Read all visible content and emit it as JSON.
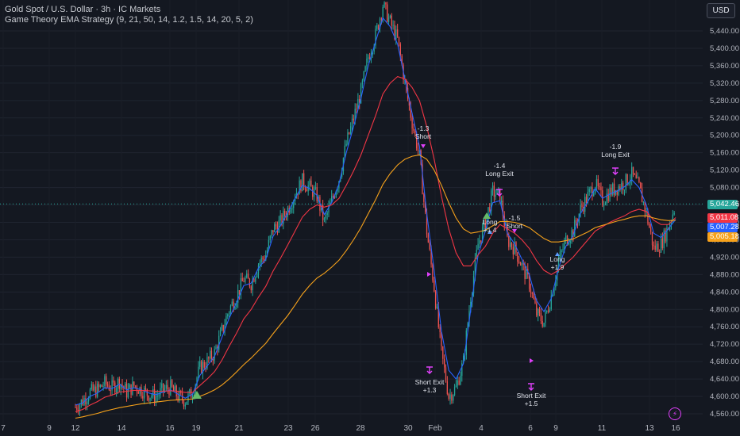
{
  "header": {
    "title": "Gold Spot / U.S. Dollar · 3h · IC Markets",
    "indicator": "Game Theory EMA Strategy (9, 21, 50, 14, 1.2, 1.5, 14, 20, 5, 2)"
  },
  "currency_button": "USD",
  "colors": {
    "background": "#141821",
    "up": "#26a69a",
    "down": "#ef5350",
    "ema_fast": "#2962ff",
    "ema_mid": "#f23645",
    "ema_slow": "#f7a21b",
    "signal": "#e040fb",
    "long_marker": "#66bb6a"
  },
  "price_tags": [
    {
      "value": "5,042.46",
      "color": "#26a69a"
    },
    {
      "value": "5,011.08",
      "color": "#f23645"
    },
    {
      "value": "5,007.28",
      "color": "#2962ff"
    },
    {
      "value": "5,005.18",
      "color": "#f7a21b"
    }
  ],
  "chart_data": {
    "type": "candlestick",
    "ylim": [
      4540,
      5500
    ],
    "y_ticks": [
      4560,
      4600,
      4640,
      4680,
      4720,
      4760,
      4800,
      4840,
      4880,
      4920,
      4960,
      5000,
      5040,
      5080,
      5120,
      5160,
      5200,
      5240,
      5280,
      5320,
      5360,
      5400,
      5440
    ],
    "y_tick_labels": [
      "4,560.00",
      "4,600.00",
      "4,640.00",
      "4,680.00",
      "4,720.00",
      "4,760.00",
      "4,800.00",
      "4,840.00",
      "4,880.00",
      "4,920.00",
      "4,960.00",
      "5,000.00",
      "5,040.00",
      "5,080.00",
      "5,120.00",
      "5,160.00",
      "5,200.00",
      "5,240.00",
      "5,280.00",
      "5,320.00",
      "5,360.00",
      "5,400.00",
      "5,440.00"
    ],
    "x_labels": [
      "7",
      "9",
      "12",
      "14",
      "16",
      "19",
      "21",
      "23",
      "26",
      "28",
      "30",
      "Feb",
      "4",
      "6",
      "9",
      "11",
      "13",
      "16"
    ],
    "current_price": 5042.46,
    "close_path": [
      4575,
      4590,
      4610,
      4615,
      4630,
      4620,
      4635,
      4610,
      4625,
      4615,
      4605,
      4600,
      4615,
      4620,
      4600,
      4590,
      4610,
      4665,
      4680,
      4700,
      4750,
      4800,
      4830,
      4870,
      4860,
      4905,
      4925,
      4985,
      5000,
      5030,
      5065,
      5095,
      5080,
      5060,
      5000,
      5050,
      5100,
      5180,
      5240,
      5300,
      5380,
      5430,
      5500,
      5460,
      5420,
      5320,
      5230,
      5150,
      4980,
      4850,
      4700,
      4600,
      4620,
      4680,
      4830,
      4950,
      5000,
      5070,
      5060,
      4960,
      4940,
      4900,
      4860,
      4790,
      4770,
      4830,
      4910,
      4960,
      4980,
      5030,
      5060,
      5090,
      5050,
      5070,
      5080,
      5090,
      5110,
      5080,
      5020,
      4940,
      4950,
      4990,
      5042
    ],
    "series": [
      {
        "name": "EMA 9",
        "color": "#2962ff",
        "values": [
          4580,
          4585,
          4600,
          4608,
          4620,
          4618,
          4628,
          4615,
          4620,
          4615,
          4608,
          4604,
          4610,
          4615,
          4605,
          4596,
          4605,
          4648,
          4670,
          4692,
          4735,
          4780,
          4815,
          4855,
          4860,
          4895,
          4915,
          4968,
          4992,
          5022,
          5055,
          5085,
          5078,
          5062,
          5018,
          5045,
          5088,
          5160,
          5220,
          5285,
          5360,
          5415,
          5470,
          5450,
          5410,
          5330,
          5250,
          5175,
          5020,
          4890,
          4750,
          4660,
          4640,
          4675,
          4800,
          4925,
          4980,
          5045,
          5050,
          4975,
          4950,
          4915,
          4880,
          4820,
          4795,
          4825,
          4895,
          4945,
          4970,
          5020,
          5048,
          5078,
          5055,
          5065,
          5072,
          5082,
          5098,
          5080,
          5040,
          4975,
          4965,
          4985,
          5007
        ]
      },
      {
        "name": "EMA 21",
        "color": "#f23645",
        "values": [
          4565,
          4570,
          4580,
          4588,
          4598,
          4603,
          4610,
          4612,
          4614,
          4614,
          4613,
          4612,
          4612,
          4613,
          4612,
          4609,
          4609,
          4625,
          4640,
          4657,
          4683,
          4715,
          4745,
          4778,
          4800,
          4828,
          4853,
          4888,
          4917,
          4948,
          4980,
          5012,
          5030,
          5040,
          5035,
          5040,
          5055,
          5085,
          5118,
          5155,
          5200,
          5245,
          5295,
          5320,
          5335,
          5330,
          5310,
          5280,
          5220,
          5145,
          5060,
          4985,
          4930,
          4900,
          4900,
          4925,
          4945,
          4975,
          4995,
          4985,
          4975,
          4960,
          4940,
          4912,
          4890,
          4880,
          4890,
          4905,
          4920,
          4940,
          4960,
          4980,
          4990,
          5000,
          5008,
          5015,
          5025,
          5030,
          5025,
          5005,
          4995,
          4995,
          5011
        ]
      },
      {
        "name": "EMA 50",
        "color": "#f7a21b",
        "values": [
          4550,
          4553,
          4557,
          4561,
          4566,
          4570,
          4574,
          4577,
          4580,
          4583,
          4585,
          4587,
          4589,
          4591,
          4592,
          4593,
          4594,
          4600,
          4607,
          4615,
          4626,
          4640,
          4656,
          4673,
          4688,
          4705,
          4722,
          4744,
          4765,
          4786,
          4810,
          4835,
          4855,
          4872,
          4883,
          4897,
          4913,
          4935,
          4960,
          4988,
          5020,
          5052,
          5087,
          5112,
          5132,
          5145,
          5152,
          5155,
          5145,
          5120,
          5085,
          5045,
          5010,
          4985,
          4975,
          4978,
          4982,
          4992,
          5002,
          5002,
          5000,
          4995,
          4988,
          4975,
          4963,
          4955,
          4955,
          4958,
          4962,
          4970,
          4978,
          4988,
          4993,
          4998,
          5003,
          5007,
          5012,
          5015,
          5015,
          5010,
          5006,
          5004,
          5005
        ]
      }
    ],
    "signals": [
      {
        "type": "long",
        "label": [
          "Long",
          "+1.4"
        ]
      },
      {
        "type": "long",
        "label": [
          "Long",
          "+1.9"
        ]
      },
      {
        "type": "short",
        "label": [
          "-1.3",
          "Short"
        ]
      },
      {
        "type": "short",
        "label": [
          "-1.5",
          "Short"
        ]
      },
      {
        "type": "long_exit",
        "label": [
          "-1.4",
          "Long Exit"
        ]
      },
      {
        "type": "long_exit",
        "label": [
          "-1.9",
          "Long Exit"
        ]
      },
      {
        "type": "short_exit",
        "label": [
          "Short Exit",
          "+1.3"
        ]
      },
      {
        "type": "short_exit",
        "label": [
          "Short Exit",
          "+1.5"
        ]
      }
    ]
  }
}
